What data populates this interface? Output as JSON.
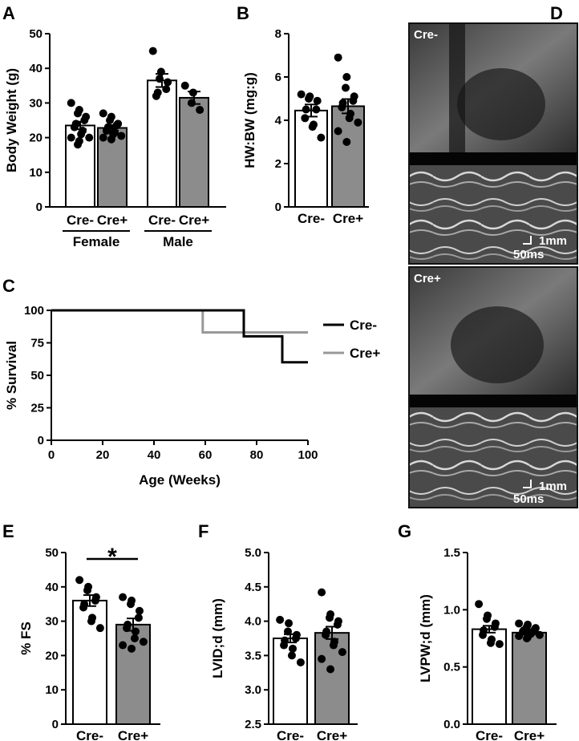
{
  "panels": {
    "A": "A",
    "B": "B",
    "C": "C",
    "D": "D",
    "E": "E",
    "F": "F",
    "G": "G"
  },
  "colors": {
    "cre_minus": "#000000",
    "cre_plus": "#999999",
    "bar_cre_minus": "#ffffff",
    "bar_cre_plus": "#8c8c8c"
  },
  "significance": "*",
  "echo": {
    "top_label": "Cre-",
    "bottom_label": "Cre+",
    "scale_mm": "1mm",
    "scale_ms": "50ms"
  },
  "chart_data": [
    {
      "id": "A",
      "type": "bar",
      "ylabel": "Body Weight (g)",
      "ylim": [
        0,
        50
      ],
      "yticks": [
        0,
        10,
        20,
        30,
        40,
        50
      ],
      "categories": [
        "Cre-",
        "Cre+",
        "Cre-",
        "Cre+"
      ],
      "groups": [
        "Female",
        "Male"
      ],
      "values": [
        23.5,
        22.8,
        36.5,
        31.5
      ],
      "sem": [
        1.1,
        0.8,
        1.9,
        1.8
      ],
      "points": [
        [
          30,
          28,
          27,
          26,
          25,
          24,
          23,
          22,
          21,
          20,
          20,
          19,
          18
        ],
        [
          27,
          26,
          25,
          24,
          23.5,
          23,
          22,
          21.5,
          21,
          20.5,
          20,
          19.5
        ],
        [
          45,
          39,
          37,
          36,
          34,
          33,
          32
        ],
        [
          35,
          33,
          30,
          28
        ]
      ]
    },
    {
      "id": "B",
      "type": "bar",
      "ylabel": "HW:BW (mg:g)",
      "ylim": [
        0,
        8
      ],
      "yticks": [
        0,
        2,
        4,
        6,
        8
      ],
      "categories": [
        "Cre-",
        "Cre+"
      ],
      "values": [
        4.45,
        4.65
      ],
      "sem": [
        0.28,
        0.33
      ],
      "points": [
        [
          5.2,
          5.1,
          5.0,
          4.9,
          4.5,
          4.5,
          4.1,
          3.8,
          3.7,
          3.2
        ],
        [
          6.9,
          6.0,
          5.5,
          5.1,
          4.9,
          4.8,
          4.6,
          4.3,
          4.1,
          3.9,
          3.5,
          3.0
        ]
      ]
    },
    {
      "id": "C",
      "type": "line",
      "xlabel": "Age (Weeks)",
      "ylabel": "% Survival",
      "xlim": [
        0,
        100
      ],
      "ylim": [
        0,
        100
      ],
      "xticks": [
        0,
        20,
        40,
        60,
        80,
        100
      ],
      "yticks": [
        0,
        25,
        50,
        75,
        100
      ],
      "series": [
        {
          "name": "Cre-",
          "x": [
            0,
            75,
            75,
            90,
            90,
            100
          ],
          "y": [
            100,
            100,
            80,
            80,
            60,
            60
          ]
        },
        {
          "name": "Cre+",
          "x": [
            0,
            59,
            59,
            100
          ],
          "y": [
            100,
            100,
            83,
            83
          ]
        }
      ]
    },
    {
      "id": "E",
      "type": "bar",
      "ylabel": "% FS",
      "ylim": [
        0,
        50
      ],
      "yticks": [
        0,
        10,
        20,
        30,
        40,
        50
      ],
      "categories": [
        "Cre-",
        "Cre+"
      ],
      "values": [
        36,
        29
      ],
      "sem": [
        1.6,
        1.8
      ],
      "points": [
        [
          42,
          40,
          39,
          37,
          36,
          35,
          34,
          31,
          30,
          28
        ],
        [
          37,
          36,
          35,
          33,
          31,
          29,
          28,
          27,
          25,
          24,
          23,
          22
        ]
      ]
    },
    {
      "id": "F",
      "type": "bar",
      "ylabel": "LVID;d (mm)",
      "ylim": [
        2.5,
        5.0
      ],
      "yticks": [
        2.5,
        3.0,
        3.5,
        4.0,
        4.5,
        5.0
      ],
      "categories": [
        "Cre-",
        "Cre+"
      ],
      "values": [
        3.75,
        3.83
      ],
      "sem": [
        0.06,
        0.09
      ],
      "points": [
        [
          4.02,
          3.97,
          3.85,
          3.8,
          3.75,
          3.72,
          3.65,
          3.6,
          3.5,
          3.4
        ],
        [
          4.42,
          4.1,
          4.05,
          4.0,
          3.95,
          3.85,
          3.8,
          3.7,
          3.65,
          3.55,
          3.45,
          3.3
        ]
      ]
    },
    {
      "id": "G",
      "type": "bar",
      "ylabel": "LVPW;d (mm)",
      "ylim": [
        0.0,
        1.5
      ],
      "yticks": [
        0.0,
        0.5,
        1.0,
        1.5
      ],
      "categories": [
        "Cre-",
        "Cre+"
      ],
      "values": [
        0.83,
        0.8
      ],
      "sem": [
        0.03,
        0.015
      ],
      "points": [
        [
          1.05,
          0.95,
          0.92,
          0.88,
          0.85,
          0.82,
          0.78,
          0.74,
          0.71,
          0.7
        ],
        [
          0.88,
          0.87,
          0.85,
          0.84,
          0.83,
          0.82,
          0.81,
          0.8,
          0.79,
          0.78,
          0.77,
          0.76,
          0.75
        ]
      ]
    }
  ]
}
